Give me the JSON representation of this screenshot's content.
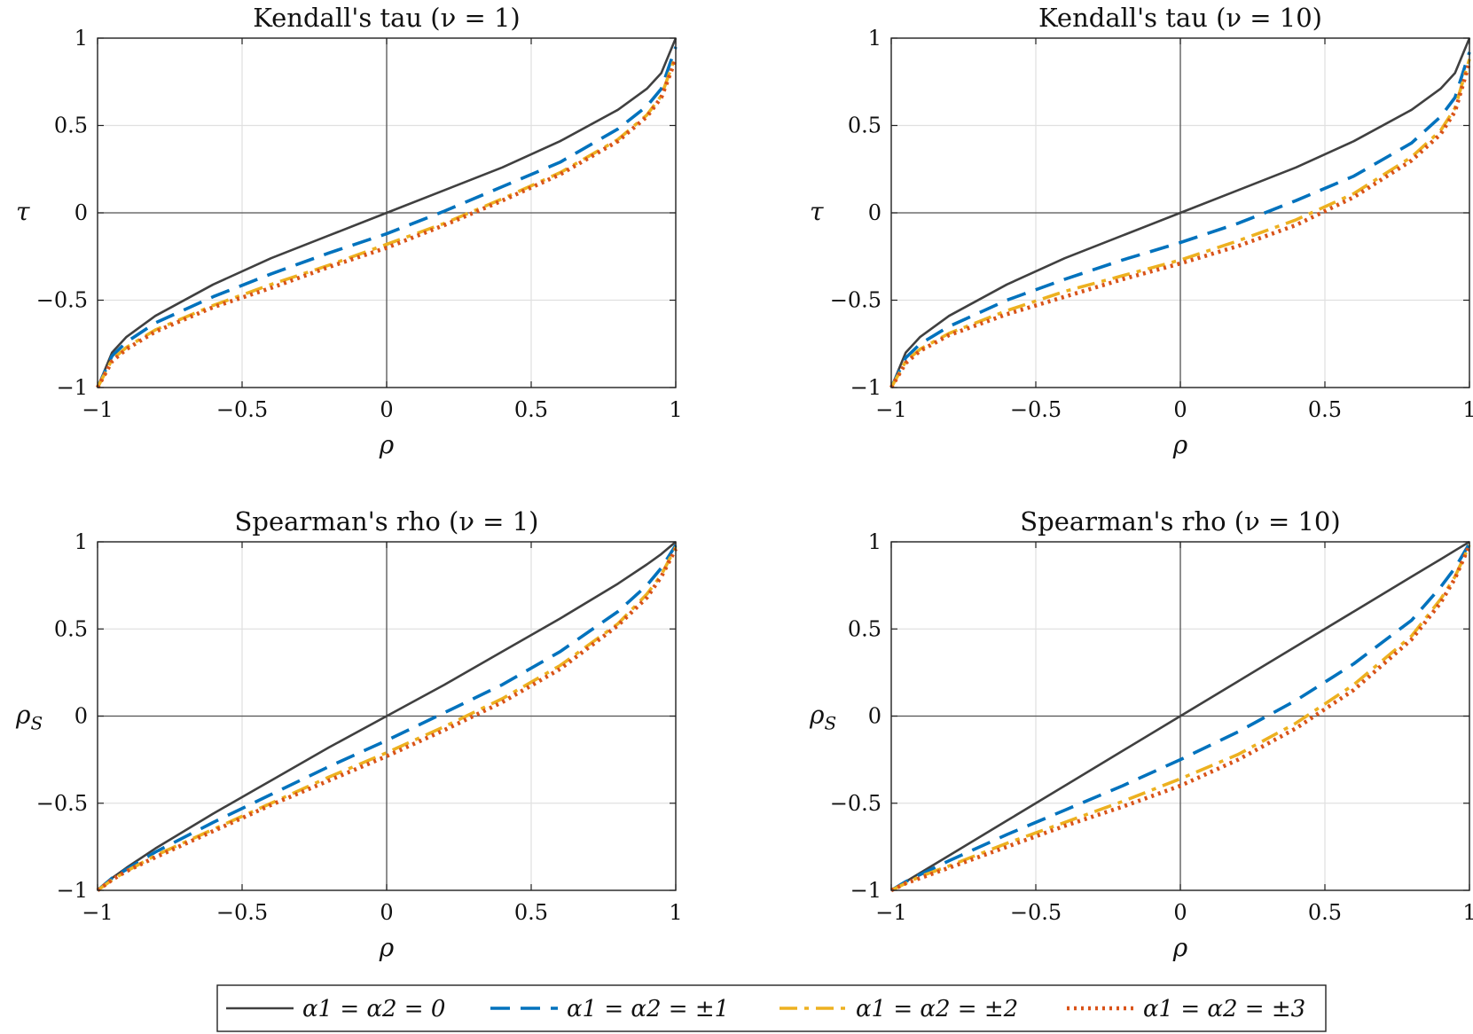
{
  "chart_data": [
    {
      "type": "line",
      "title": "Kendall's tau (ν = 1)",
      "xlabel": "ρ",
      "ylabel": "τ",
      "xlim": [
        -1,
        1
      ],
      "ylim": [
        -1,
        1
      ],
      "grid": true,
      "xticks": [
        -1,
        -0.5,
        0,
        0.5,
        1
      ],
      "yticks": [
        -1,
        -0.5,
        0,
        0.5,
        1
      ],
      "xtick_labels": [
        "−1",
        "−0.5",
        "0",
        "0.5",
        "1"
      ],
      "ytick_labels": [
        "−1",
        "−0.5",
        "0",
        "0.5",
        "1"
      ],
      "x": [
        -1,
        -0.95,
        -0.9,
        -0.8,
        -0.6,
        -0.4,
        -0.2,
        0,
        0.2,
        0.4,
        0.6,
        0.8,
        0.9,
        0.95,
        1
      ],
      "series": [
        {
          "name": "α1 = α2 = 0",
          "values": [
            -1,
            -0.8,
            -0.71,
            -0.59,
            -0.41,
            -0.26,
            -0.13,
            0,
            0.13,
            0.26,
            0.41,
            0.59,
            0.71,
            0.8,
            1
          ]
        },
        {
          "name": "α1 = α2 = ±1",
          "values": [
            -1,
            -0.82,
            -0.74,
            -0.63,
            -0.48,
            -0.35,
            -0.23,
            -0.12,
            0.01,
            0.15,
            0.29,
            0.48,
            0.61,
            0.71,
            0.95
          ]
        },
        {
          "name": "α1 = α2 = ±2",
          "values": [
            -1,
            -0.84,
            -0.77,
            -0.67,
            -0.53,
            -0.41,
            -0.3,
            -0.18,
            -0.06,
            0.08,
            0.23,
            0.42,
            0.56,
            0.67,
            0.9
          ]
        },
        {
          "name": "α1 = α2 = ±3",
          "values": [
            -1,
            -0.85,
            -0.78,
            -0.68,
            -0.54,
            -0.43,
            -0.31,
            -0.2,
            -0.07,
            0.07,
            0.22,
            0.41,
            0.55,
            0.66,
            0.88
          ]
        }
      ]
    },
    {
      "type": "line",
      "title": "Kendall's tau (ν = 10)",
      "xlabel": "ρ",
      "ylabel": "τ",
      "xlim": [
        -1,
        1
      ],
      "ylim": [
        -1,
        1
      ],
      "grid": true,
      "xticks": [
        -1,
        -0.5,
        0,
        0.5,
        1
      ],
      "yticks": [
        -1,
        -0.5,
        0,
        0.5,
        1
      ],
      "xtick_labels": [
        "−1",
        "−0.5",
        "0",
        "0.5",
        "1"
      ],
      "ytick_labels": [
        "−1",
        "−0.5",
        "0",
        "0.5",
        "1"
      ],
      "x": [
        -1,
        -0.95,
        -0.9,
        -0.8,
        -0.6,
        -0.4,
        -0.2,
        0,
        0.2,
        0.4,
        0.6,
        0.8,
        0.9,
        0.95,
        1
      ],
      "series": [
        {
          "name": "α1 = α2 = 0",
          "values": [
            -1,
            -0.8,
            -0.71,
            -0.59,
            -0.41,
            -0.26,
            -0.13,
            0,
            0.13,
            0.26,
            0.41,
            0.59,
            0.71,
            0.8,
            1
          ]
        },
        {
          "name": "α1 = α2 = ±1",
          "values": [
            -1,
            -0.83,
            -0.75,
            -0.65,
            -0.5,
            -0.38,
            -0.27,
            -0.17,
            -0.06,
            0.07,
            0.21,
            0.4,
            0.55,
            0.66,
            0.92
          ]
        },
        {
          "name": "α1 = α2 = ±2",
          "values": [
            -1,
            -0.85,
            -0.78,
            -0.69,
            -0.56,
            -0.45,
            -0.36,
            -0.27,
            -0.16,
            -0.04,
            0.11,
            0.32,
            0.47,
            0.6,
            0.88
          ]
        },
        {
          "name": "α1 = α2 = ±3",
          "values": [
            -1,
            -0.86,
            -0.79,
            -0.7,
            -0.58,
            -0.48,
            -0.38,
            -0.29,
            -0.19,
            -0.07,
            0.09,
            0.3,
            0.45,
            0.58,
            0.86
          ]
        }
      ]
    },
    {
      "type": "line",
      "title": "Spearman's rho (ν = 1)",
      "xlabel": "ρ",
      "ylabel": "ρS",
      "xlim": [
        -1,
        1
      ],
      "ylim": [
        -1,
        1
      ],
      "grid": true,
      "xticks": [
        -1,
        -0.5,
        0,
        0.5,
        1
      ],
      "yticks": [
        -1,
        -0.5,
        0,
        0.5,
        1
      ],
      "xtick_labels": [
        "−1",
        "−0.5",
        "0",
        "0.5",
        "1"
      ],
      "ytick_labels": [
        "−1",
        "−0.5",
        "0",
        "0.5",
        "1"
      ],
      "x": [
        -1,
        -0.95,
        -0.9,
        -0.8,
        -0.6,
        -0.4,
        -0.2,
        0,
        0.2,
        0.4,
        0.6,
        0.8,
        0.9,
        0.95,
        1
      ],
      "series": [
        {
          "name": "α1 = α2 = 0",
          "values": [
            -1,
            -0.93,
            -0.87,
            -0.76,
            -0.56,
            -0.37,
            -0.18,
            0,
            0.18,
            0.37,
            0.56,
            0.76,
            0.87,
            0.93,
            1
          ]
        },
        {
          "name": "α1 = α2 = ±1",
          "values": [
            -1,
            -0.93,
            -0.88,
            -0.78,
            -0.61,
            -0.45,
            -0.29,
            -0.14,
            0.02,
            0.18,
            0.37,
            0.6,
            0.75,
            0.85,
            0.98
          ]
        },
        {
          "name": "α1 = α2 = ±2",
          "values": [
            -1,
            -0.94,
            -0.89,
            -0.8,
            -0.65,
            -0.5,
            -0.35,
            -0.21,
            -0.06,
            0.1,
            0.29,
            0.53,
            0.7,
            0.81,
            0.97
          ]
        },
        {
          "name": "α1 = α2 = ±3",
          "values": [
            -1,
            -0.94,
            -0.89,
            -0.81,
            -0.66,
            -0.51,
            -0.37,
            -0.23,
            -0.08,
            0.08,
            0.27,
            0.52,
            0.68,
            0.8,
            0.96
          ]
        }
      ]
    },
    {
      "type": "line",
      "title": "Spearman's rho (ν = 10)",
      "xlabel": "ρ",
      "ylabel": "ρS",
      "xlim": [
        -1,
        1
      ],
      "ylim": [
        -1,
        1
      ],
      "grid": true,
      "xticks": [
        -1,
        -0.5,
        0,
        0.5,
        1
      ],
      "yticks": [
        -1,
        -0.5,
        0,
        0.5,
        1
      ],
      "xtick_labels": [
        "−1",
        "−0.5",
        "0",
        "0.5",
        "1"
      ],
      "ytick_labels": [
        "−1",
        "−0.5",
        "0",
        "0.5",
        "1"
      ],
      "x": [
        -1,
        -0.95,
        -0.9,
        -0.8,
        -0.6,
        -0.4,
        -0.2,
        0,
        0.2,
        0.4,
        0.6,
        0.8,
        0.9,
        0.95,
        1
      ],
      "series": [
        {
          "name": "α1 = α2 = 0",
          "values": [
            -1,
            -0.95,
            -0.9,
            -0.8,
            -0.6,
            -0.4,
            -0.2,
            0,
            0.2,
            0.4,
            0.6,
            0.8,
            0.9,
            0.95,
            1
          ]
        },
        {
          "name": "α1 = α2 = ±1",
          "values": [
            -1,
            -0.95,
            -0.91,
            -0.83,
            -0.68,
            -0.54,
            -0.4,
            -0.25,
            -0.09,
            0.09,
            0.3,
            0.55,
            0.74,
            0.85,
            0.99
          ]
        },
        {
          "name": "α1 = α2 = ±2",
          "values": [
            -1,
            -0.96,
            -0.92,
            -0.86,
            -0.73,
            -0.61,
            -0.49,
            -0.36,
            -0.22,
            -0.04,
            0.18,
            0.46,
            0.67,
            0.8,
            0.98
          ]
        },
        {
          "name": "α1 = α2 = ±3",
          "values": [
            -1,
            -0.96,
            -0.93,
            -0.87,
            -0.75,
            -0.63,
            -0.52,
            -0.4,
            -0.25,
            -0.07,
            0.15,
            0.44,
            0.65,
            0.79,
            0.98
          ]
        }
      ]
    }
  ],
  "legend": {
    "placement": "bottom-center",
    "entries": [
      {
        "label": "α1 = α2 = 0",
        "color": "#404040",
        "style": "solid"
      },
      {
        "label": "α1 = α2 = ±1",
        "color": "#0072BD",
        "style": "dashed"
      },
      {
        "label": "α1 = α2 = ±2",
        "color": "#EDB120",
        "style": "dashdot"
      },
      {
        "label": "α1 = α2 = ±3",
        "color": "#D95319",
        "style": "dotted"
      }
    ]
  },
  "colors": {
    "series": [
      "#404040",
      "#0072BD",
      "#EDB120",
      "#D95319"
    ],
    "grid": "#e0e0e0",
    "zero_line": "#555555",
    "axes": "#222222"
  }
}
